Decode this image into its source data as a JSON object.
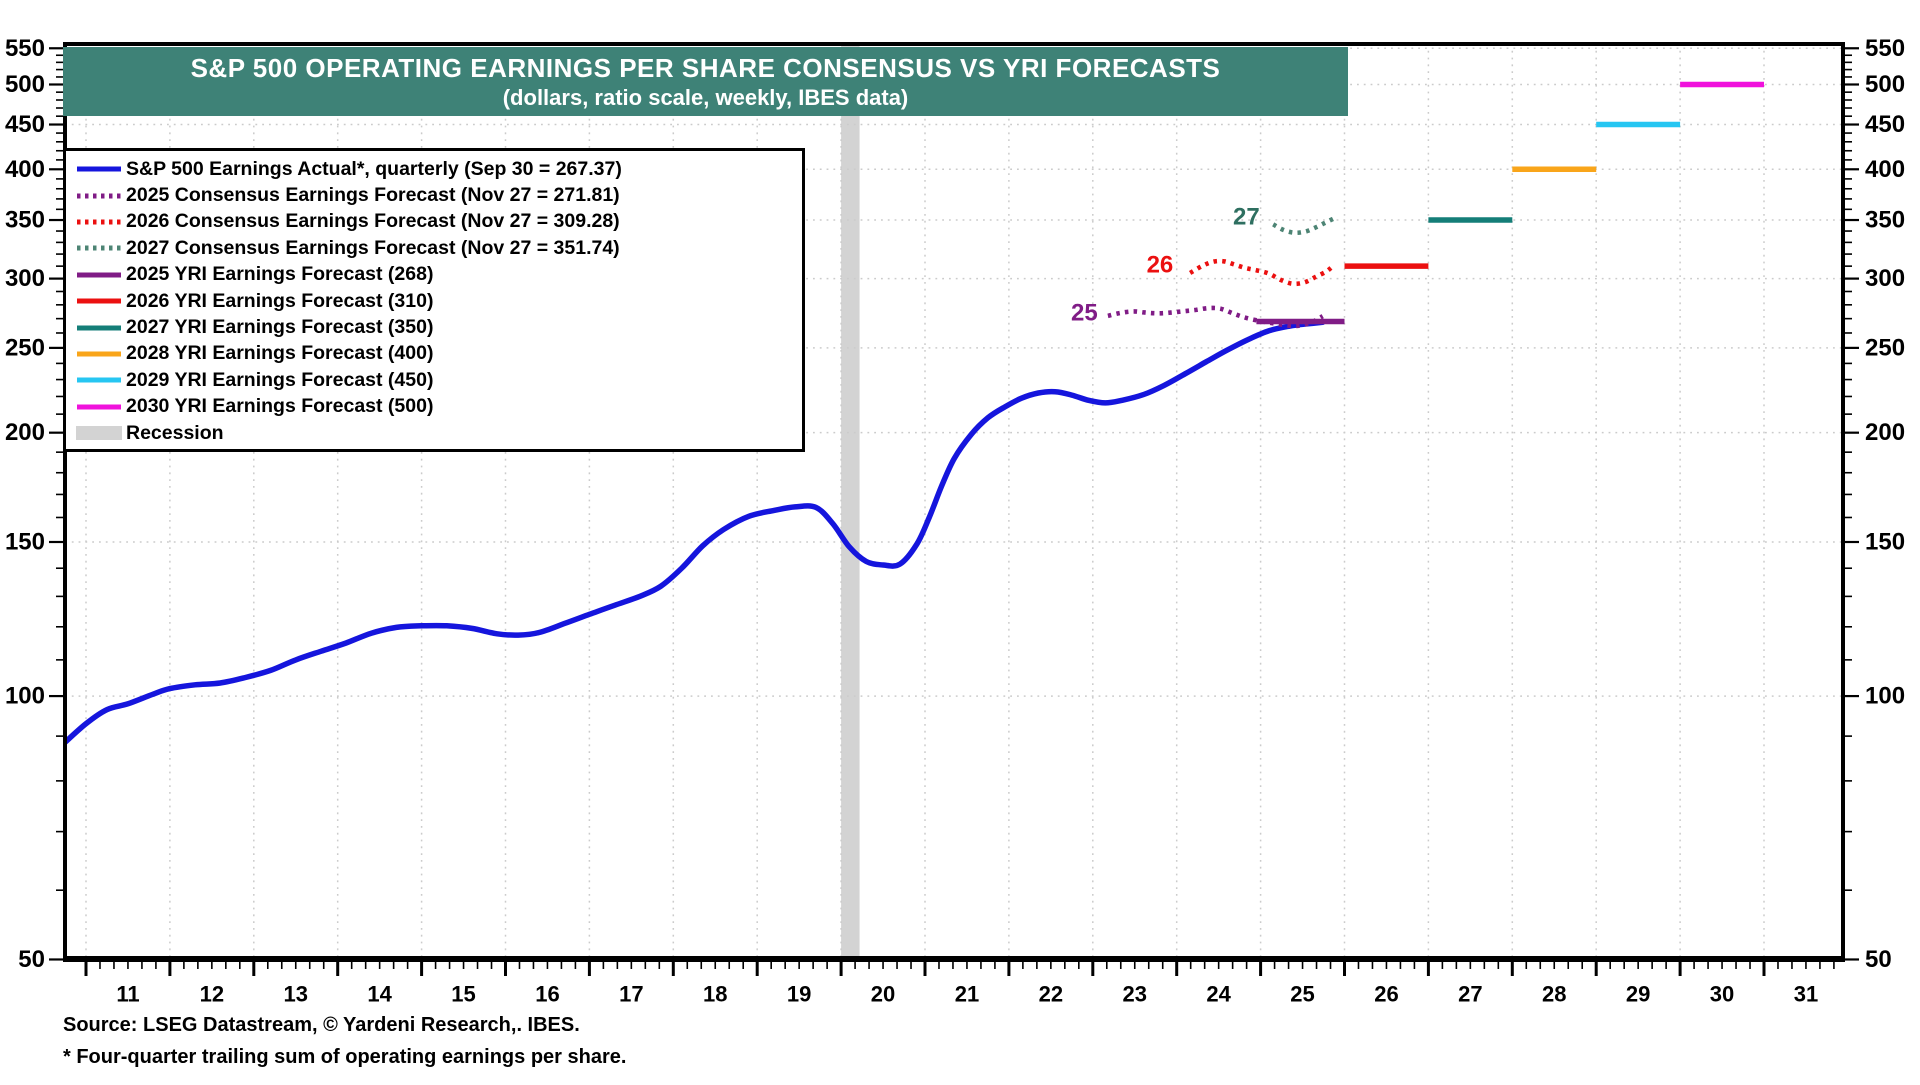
{
  "header": {
    "title": "S&P 500 OPERATING EARNINGS PER SHARE CONSENSUS VS YRI FORECASTS",
    "subtitle": "(dollars, ratio scale, weekly, IBES data)"
  },
  "footer": {
    "source": "Source: LSEG Datastream, © Yardeni Research,. IBES.",
    "footnote": "* Four-quarter trailing sum of operating earnings per share."
  },
  "colors": {
    "banner": "#3E8277",
    "actual": "#1515DD",
    "c2025": "#801C86",
    "c2026": "#EB1010",
    "c2027": "#4D8474",
    "annotation27": "#2E6F60",
    "yri2025": "#801C86",
    "yri2026": "#EB1010",
    "yri2027": "#147E78",
    "yri2028": "#F9A51A",
    "yri2029": "#26C6F2",
    "yri2030": "#F012DC",
    "recession": "#D3D3D3",
    "grid": "#CBCBCB",
    "axis": "#000000"
  },
  "chart_data": {
    "type": "line",
    "title": "S&P 500 OPERATING EARNINGS PER SHARE CONSENSUS VS YRI FORECASTS",
    "subtitle": "(dollars, ratio scale, weekly, IBES data)",
    "y_scale": "log (ratio scale)",
    "ylim": [
      50,
      556
    ],
    "yticks": [
      50,
      100,
      150,
      200,
      250,
      300,
      350,
      400,
      450,
      500,
      550
    ],
    "x_unit": "year 20xx",
    "xtick_labels": [
      11,
      12,
      13,
      14,
      15,
      16,
      17,
      18,
      19,
      20,
      21,
      22,
      23,
      24,
      25,
      26,
      27,
      28,
      29,
      30,
      31
    ],
    "grid": true,
    "legend_position": "top-left",
    "legend": [
      {
        "id": "actual",
        "label": "S&P 500 Earnings Actual*, quarterly (Sep 30 = 267.37)",
        "style": "solid",
        "color_key": "actual"
      },
      {
        "id": "consensus_2025",
        "label": "2025 Consensus Earnings Forecast (Nov 27 = 271.81)",
        "style": "dotted",
        "color_key": "c2025"
      },
      {
        "id": "consensus_2026",
        "label": "2026 Consensus Earnings Forecast (Nov 27 = 309.28)",
        "style": "dotted",
        "color_key": "c2026"
      },
      {
        "id": "consensus_2027",
        "label": "2027 Consensus Earnings Forecast (Nov 27 = 351.74)",
        "style": "dotted",
        "color_key": "c2027"
      },
      {
        "id": "yri_2025",
        "label": "2025 YRI Earnings Forecast (268)",
        "style": "solid",
        "color_key": "yri2025"
      },
      {
        "id": "yri_2026",
        "label": "2026 YRI Earnings Forecast (310)",
        "style": "solid",
        "color_key": "yri2026"
      },
      {
        "id": "yri_2027",
        "label": "2027 YRI Earnings Forecast (350)",
        "style": "solid",
        "color_key": "yri2027"
      },
      {
        "id": "yri_2028",
        "label": "2028 YRI Earnings Forecast (400)",
        "style": "solid",
        "color_key": "yri2028"
      },
      {
        "id": "yri_2029",
        "label": "2029 YRI Earnings Forecast (450)",
        "style": "solid",
        "color_key": "yri2029"
      },
      {
        "id": "yri_2030",
        "label": "2030 YRI Earnings Forecast (500)",
        "style": "solid",
        "color_key": "yri2030"
      },
      {
        "id": "recession",
        "label": "Recession",
        "style": "band",
        "color_key": "recession"
      }
    ],
    "series": [
      {
        "id": "actual",
        "label": "S&P 500 Earnings Actual*, quarterly",
        "style": "solid",
        "color_key": "actual",
        "latest": {
          "date": "Sep 30",
          "value": 267.37
        },
        "points": [
          [
            10.72,
            88
          ],
          [
            11.0,
            93
          ],
          [
            11.25,
            96.5
          ],
          [
            11.5,
            98
          ],
          [
            11.8,
            100.5
          ],
          [
            12.0,
            102
          ],
          [
            12.3,
            103
          ],
          [
            12.6,
            103.5
          ],
          [
            12.9,
            105
          ],
          [
            13.2,
            107
          ],
          [
            13.5,
            110
          ],
          [
            13.8,
            112.5
          ],
          [
            14.1,
            115
          ],
          [
            14.4,
            118
          ],
          [
            14.7,
            119.8
          ],
          [
            15.0,
            120.3
          ],
          [
            15.3,
            120.3
          ],
          [
            15.6,
            119.5
          ],
          [
            15.9,
            117.8
          ],
          [
            16.15,
            117.4
          ],
          [
            16.4,
            118.2
          ],
          [
            16.7,
            121
          ],
          [
            17.0,
            124
          ],
          [
            17.3,
            127
          ],
          [
            17.6,
            130
          ],
          [
            17.85,
            133.5
          ],
          [
            18.1,
            140
          ],
          [
            18.35,
            148.5
          ],
          [
            18.6,
            155
          ],
          [
            18.9,
            160.5
          ],
          [
            19.2,
            163
          ],
          [
            19.45,
            164.5
          ],
          [
            19.7,
            164.3
          ],
          [
            19.9,
            157.5
          ],
          [
            20.1,
            148
          ],
          [
            20.3,
            142.5
          ],
          [
            20.5,
            141.2
          ],
          [
            20.7,
            141.5
          ],
          [
            20.9,
            149
          ],
          [
            21.05,
            160
          ],
          [
            21.2,
            174
          ],
          [
            21.35,
            187
          ],
          [
            21.55,
            199
          ],
          [
            21.75,
            208
          ],
          [
            21.95,
            214
          ],
          [
            22.15,
            219
          ],
          [
            22.35,
            222
          ],
          [
            22.55,
            222.8
          ],
          [
            22.75,
            220.8
          ],
          [
            22.95,
            217.8
          ],
          [
            23.15,
            216.3
          ],
          [
            23.35,
            217.8
          ],
          [
            23.6,
            221
          ],
          [
            23.85,
            226.5
          ],
          [
            24.1,
            233.5
          ],
          [
            24.35,
            241
          ],
          [
            24.6,
            248.5
          ],
          [
            24.85,
            255.5
          ],
          [
            25.1,
            261.5
          ],
          [
            25.35,
            264.8
          ],
          [
            25.55,
            266.3
          ],
          [
            25.74,
            267.4
          ]
        ]
      },
      {
        "id": "consensus_2025",
        "label": "2025 Consensus Earnings Forecast",
        "style": "dotted",
        "color_key": "c2025",
        "latest": {
          "date": "Nov 27",
          "value": 271.81
        },
        "points": [
          [
            23.18,
            272
          ],
          [
            23.32,
            274
          ],
          [
            23.48,
            275.2
          ],
          [
            23.63,
            274.3
          ],
          [
            23.78,
            273.8
          ],
          [
            23.93,
            274.3
          ],
          [
            24.08,
            275.3
          ],
          [
            24.23,
            276.3
          ],
          [
            24.38,
            277.6
          ],
          [
            24.52,
            277.2
          ],
          [
            24.66,
            274
          ],
          [
            24.8,
            271
          ],
          [
            24.95,
            268.8
          ],
          [
            25.1,
            267.2
          ],
          [
            25.25,
            265.8
          ],
          [
            25.4,
            264.8
          ],
          [
            25.52,
            265.8
          ],
          [
            25.63,
            268
          ],
          [
            25.74,
            271.8
          ]
        ]
      },
      {
        "id": "consensus_2026",
        "label": "2026 Consensus Earnings Forecast",
        "style": "dotted",
        "color_key": "c2026",
        "latest": {
          "date": "Nov 27",
          "value": 309.28
        },
        "points": [
          [
            24.16,
            304.5
          ],
          [
            24.3,
            310
          ],
          [
            24.43,
            313.6
          ],
          [
            24.56,
            314
          ],
          [
            24.68,
            311.5
          ],
          [
            24.82,
            308.5
          ],
          [
            24.96,
            306.5
          ],
          [
            25.1,
            304
          ],
          [
            25.24,
            299
          ],
          [
            25.38,
            296
          ],
          [
            25.52,
            297
          ],
          [
            25.66,
            301.5
          ],
          [
            25.78,
            305.5
          ],
          [
            25.85,
            309.3
          ]
        ]
      },
      {
        "id": "consensus_2027",
        "label": "2027 Consensus Earnings Forecast",
        "style": "dotted",
        "color_key": "c2027",
        "latest": {
          "date": "Nov 27",
          "value": 351.74
        },
        "points": [
          [
            25.15,
            346
          ],
          [
            25.27,
            341
          ],
          [
            25.4,
            338.5
          ],
          [
            25.53,
            339.5
          ],
          [
            25.65,
            343
          ],
          [
            25.77,
            347.5
          ],
          [
            25.88,
            351.7
          ]
        ]
      }
    ],
    "yri_forecasts": [
      {
        "id": "yri_2025",
        "label": "2025 YRI Earnings Forecast",
        "value": 268,
        "x_span": [
          24.95,
          26.0
        ],
        "color_key": "yri2025"
      },
      {
        "id": "yri_2026",
        "label": "2026 YRI Earnings Forecast",
        "value": 310,
        "x_span": [
          26.0,
          27.0
        ],
        "color_key": "yri2026"
      },
      {
        "id": "yri_2027",
        "label": "2027 YRI Earnings Forecast",
        "value": 350,
        "x_span": [
          27.0,
          28.0
        ],
        "color_key": "yri2027"
      },
      {
        "id": "yri_2028",
        "label": "2028 YRI Earnings Forecast",
        "value": 400,
        "x_span": [
          28.0,
          29.0
        ],
        "color_key": "yri2028"
      },
      {
        "id": "yri_2029",
        "label": "2029 YRI Earnings Forecast",
        "value": 450,
        "x_span": [
          29.0,
          30.0
        ],
        "color_key": "yri2029"
      },
      {
        "id": "yri_2030",
        "label": "2030 YRI Earnings Forecast",
        "value": 500,
        "x_span": [
          30.0,
          31.0
        ],
        "color_key": "yri2030"
      }
    ],
    "annotations": [
      {
        "text": "25",
        "x": 22.9,
        "y": 274,
        "color_key": "c2025"
      },
      {
        "text": "26",
        "x": 23.8,
        "y": 311,
        "color_key": "c2026"
      },
      {
        "text": "27",
        "x": 24.83,
        "y": 353,
        "color_key": "annotation27"
      }
    ],
    "recession_bands": [
      {
        "x_span": [
          20.0,
          20.22
        ]
      }
    ]
  }
}
